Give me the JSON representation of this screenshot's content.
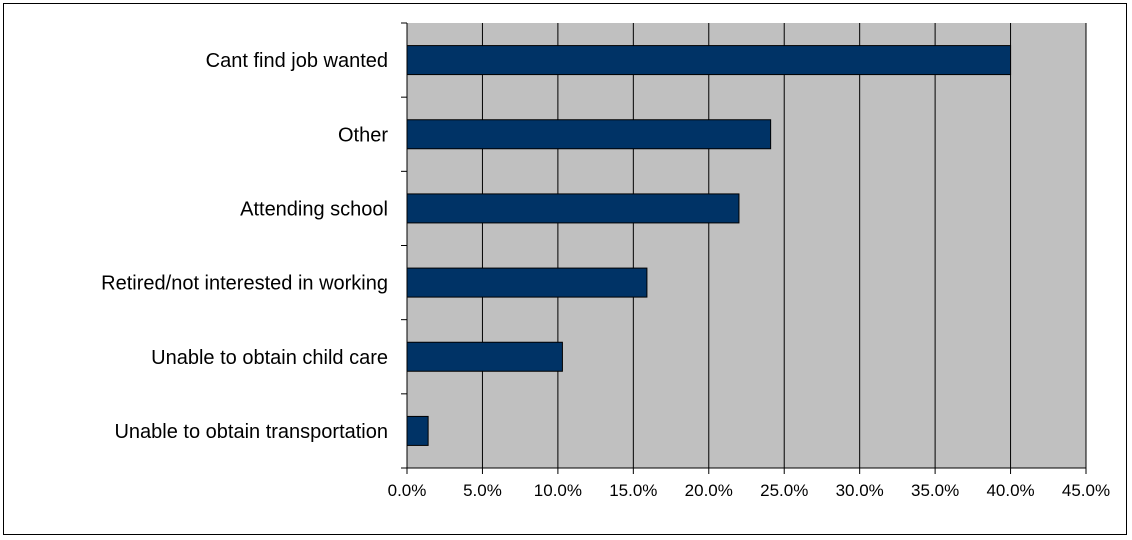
{
  "chart_data": {
    "type": "bar",
    "orientation": "horizontal",
    "title": "",
    "xlabel": "",
    "ylabel": "",
    "categories": [
      "Cant find job wanted",
      "Other",
      "Attending school",
      "Retired/not interested in working",
      "Unable to obtain child care",
      "Unable to obtain transportation"
    ],
    "series": [
      {
        "values": [
          40.0,
          24.1,
          22.0,
          15.9,
          10.3,
          1.4
        ]
      }
    ],
    "xlim": [
      0,
      45
    ],
    "x_ticks": [
      "0.0%",
      "5.0%",
      "10.0%",
      "15.0%",
      "20.0%",
      "25.0%",
      "30.0%",
      "35.0%",
      "40.0%",
      "45.0%"
    ],
    "grid": "vertical",
    "legend": "none",
    "colors": {
      "bar_fill": "#003366",
      "bar_edge": "#000000",
      "plot_background": "#c0c0c0",
      "gridline": "#000000"
    }
  }
}
